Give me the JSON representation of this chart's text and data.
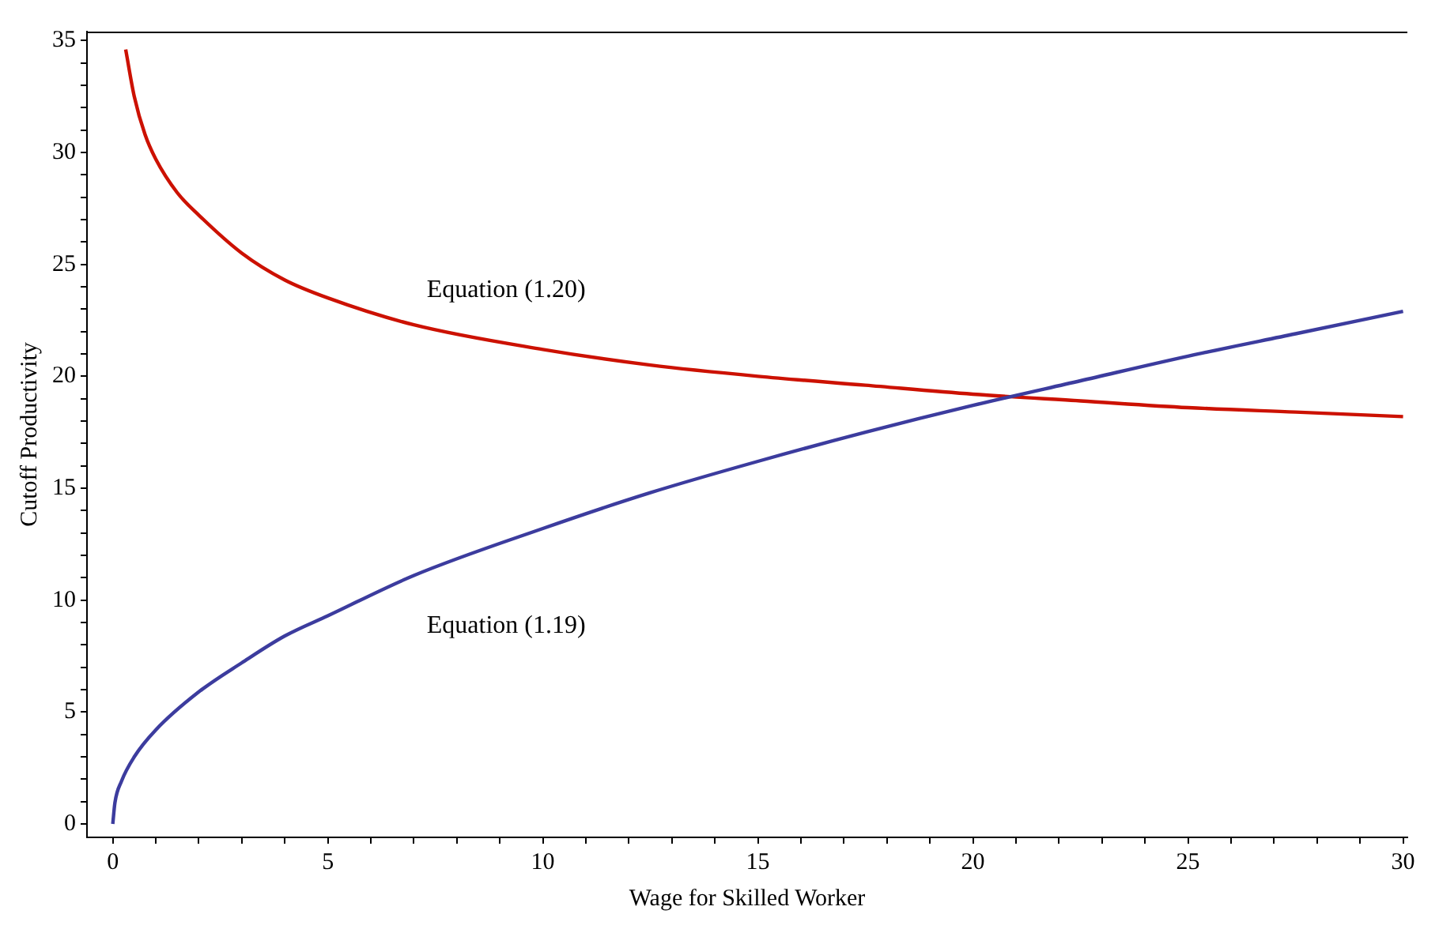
{
  "chart_data": {
    "type": "line",
    "xlabel": "Wage for Skilled Worker",
    "ylabel": "Cutoff Productivity",
    "xlim": [
      -0.6,
      30.1
    ],
    "ylim": [
      -0.6,
      35.4
    ],
    "xticks": [
      0,
      {
        "value": 1,
        "label": null
      },
      {
        "value": 2,
        "label": null
      },
      {
        "value": 3,
        "label": null
      },
      {
        "value": 4,
        "label": null
      },
      5,
      {
        "value": 6,
        "label": null
      },
      {
        "value": 7,
        "label": null
      },
      {
        "value": 8,
        "label": null
      },
      {
        "value": 9,
        "label": null
      },
      10,
      {
        "value": 11,
        "label": null
      },
      {
        "value": 12,
        "label": null
      },
      {
        "value": 13,
        "label": null
      },
      {
        "value": 14,
        "label": null
      },
      15,
      {
        "value": 16,
        "label": null
      },
      {
        "value": 17,
        "label": null
      },
      {
        "value": 18,
        "label": null
      },
      {
        "value": 19,
        "label": null
      },
      20,
      {
        "value": 21,
        "label": null
      },
      {
        "value": 22,
        "label": null
      },
      {
        "value": 23,
        "label": null
      },
      {
        "value": 24,
        "label": null
      },
      25,
      {
        "value": 26,
        "label": null
      },
      {
        "value": 27,
        "label": null
      },
      {
        "value": 28,
        "label": null
      },
      {
        "value": 29,
        "label": null
      },
      30
    ],
    "yticks": [
      0,
      {
        "value": 1,
        "label": null
      },
      {
        "value": 2,
        "label": null
      },
      {
        "value": 3,
        "label": null
      },
      {
        "value": 4,
        "label": null
      },
      5,
      {
        "value": 6,
        "label": null
      },
      {
        "value": 7,
        "label": null
      },
      {
        "value": 8,
        "label": null
      },
      {
        "value": 9,
        "label": null
      },
      10,
      {
        "value": 11,
        "label": null
      },
      {
        "value": 12,
        "label": null
      },
      {
        "value": 13,
        "label": null
      },
      {
        "value": 14,
        "label": null
      },
      15,
      {
        "value": 16,
        "label": null
      },
      {
        "value": 17,
        "label": null
      },
      {
        "value": 18,
        "label": null
      },
      {
        "value": 19,
        "label": null
      },
      20,
      {
        "value": 21,
        "label": null
      },
      {
        "value": 22,
        "label": null
      },
      {
        "value": 23,
        "label": null
      },
      {
        "value": 24,
        "label": null
      },
      25,
      {
        "value": 26,
        "label": null
      },
      {
        "value": 27,
        "label": null
      },
      {
        "value": 28,
        "label": null
      },
      {
        "value": 29,
        "label": null
      },
      30,
      {
        "value": 31,
        "label": null
      },
      {
        "value": 32,
        "label": null
      },
      {
        "value": 33,
        "label": null
      },
      {
        "value": 34,
        "label": null
      },
      35
    ],
    "series": [
      {
        "name": "Equation (1.19)",
        "color": "#3c3c9e",
        "x": [
          0,
          0.05,
          0.2,
          0.5,
          1,
          2,
          3,
          4,
          5,
          7,
          10,
          12.5,
          15,
          17.5,
          20,
          22.5,
          25,
          27.5,
          30
        ],
        "values": [
          0,
          0.95,
          1.9,
          3.0,
          4.2,
          5.9,
          7.2,
          8.4,
          9.3,
          11.1,
          13.2,
          14.8,
          16.2,
          17.5,
          18.7,
          19.8,
          20.9,
          21.9,
          22.9
        ]
      },
      {
        "name": "Equation (1.20)",
        "color": "#cc1100",
        "x": [
          0.3,
          0.5,
          0.75,
          1,
          1.5,
          2,
          3,
          4,
          5,
          7,
          10,
          12.5,
          15,
          17.5,
          20,
          22.5,
          25,
          27.5,
          30
        ],
        "values": [
          34.6,
          32.5,
          30.8,
          29.7,
          28.2,
          27.2,
          25.5,
          24.3,
          23.5,
          22.3,
          21.2,
          20.5,
          20.0,
          19.6,
          19.2,
          18.9,
          18.6,
          18.4,
          18.2
        ]
      }
    ],
    "legend": false,
    "marker": "none",
    "line_style": "solid"
  }
}
